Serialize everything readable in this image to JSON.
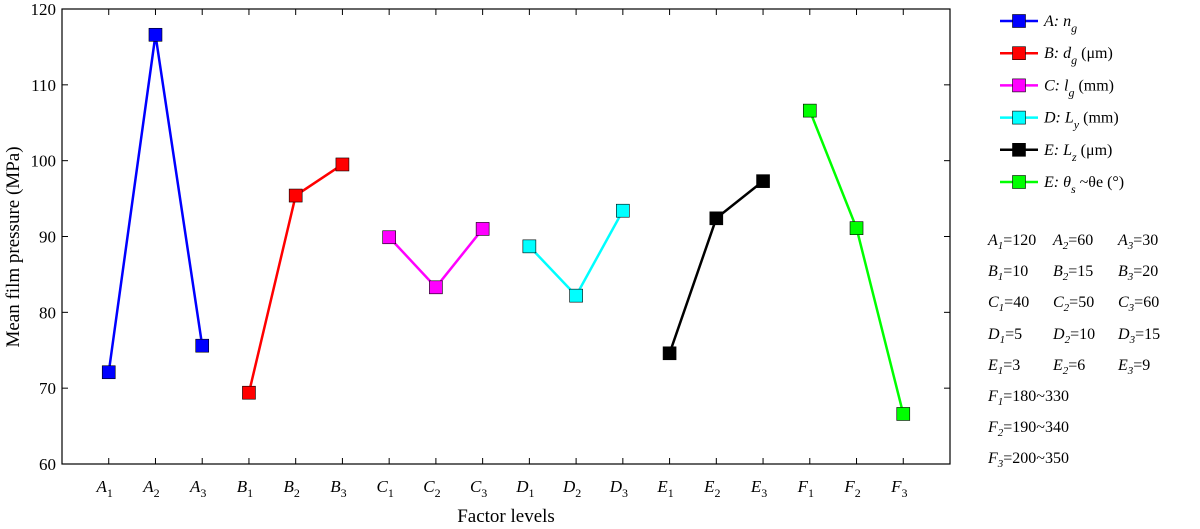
{
  "chart_data": {
    "type": "line",
    "xlabel": "Factor levels",
    "ylabel": "Mean film pressure (MPa)",
    "ylim": [
      60,
      120
    ],
    "yticks": [
      60,
      70,
      80,
      90,
      100,
      110,
      120
    ],
    "grid": false,
    "legend_position": "right",
    "categories": [
      "A1",
      "A2",
      "A3",
      "B1",
      "B2",
      "B3",
      "C1",
      "C2",
      "C3",
      "D1",
      "D2",
      "D3",
      "E1",
      "E2",
      "E3",
      "F1",
      "F2",
      "F3"
    ],
    "series": [
      {
        "name": "A: ng",
        "color": "#0000ff",
        "points": [
          {
            "x": "A1",
            "y": 72.1
          },
          {
            "x": "A2",
            "y": 116.6
          },
          {
            "x": "A3",
            "y": 75.6
          }
        ]
      },
      {
        "name": "B: dg (μm)",
        "color": "#ff0000",
        "points": [
          {
            "x": "B1",
            "y": 69.4
          },
          {
            "x": "B2",
            "y": 95.4
          },
          {
            "x": "B3",
            "y": 99.5
          }
        ]
      },
      {
        "name": "C: lg (mm)",
        "color": "#ff00ff",
        "points": [
          {
            "x": "C1",
            "y": 89.9
          },
          {
            "x": "C2",
            "y": 83.3
          },
          {
            "x": "C3",
            "y": 91.0
          }
        ]
      },
      {
        "name": "D: Ly (mm)",
        "color": "#00ffff",
        "points": [
          {
            "x": "D1",
            "y": 88.7
          },
          {
            "x": "D2",
            "y": 82.2
          },
          {
            "x": "D3",
            "y": 93.4
          }
        ]
      },
      {
        "name": "E: Lz (μm)",
        "color": "#000000",
        "points": [
          {
            "x": "E1",
            "y": 74.6
          },
          {
            "x": "E2",
            "y": 92.4
          },
          {
            "x": "E3",
            "y": 97.3
          }
        ]
      },
      {
        "name": "E: θs~θe (°)",
        "color": "#00ff00",
        "points": [
          {
            "x": "F1",
            "y": 106.6
          },
          {
            "x": "F2",
            "y": 91.1
          },
          {
            "x": "F3",
            "y": 66.6
          }
        ]
      }
    ],
    "legend": [
      {
        "letter": "A",
        "sym": "n",
        "sub": "g",
        "unit": ""
      },
      {
        "letter": "B",
        "sym": "d",
        "sub": "g",
        "unit": " (μm)"
      },
      {
        "letter": "C",
        "sym": "l",
        "sub": "g",
        "unit": " (mm)"
      },
      {
        "letter": "D",
        "sym": "L",
        "sub": "y",
        "unit": " (mm)"
      },
      {
        "letter": "E",
        "sym": "L",
        "sub": "z",
        "unit": " (μm)"
      },
      {
        "letter": "E",
        "sym": "θ",
        "sub": "s",
        "unit": " ~θe (°)"
      }
    ]
  },
  "factor_notes": [
    [
      {
        "sym": "A",
        "sub": "1",
        "val": "=120"
      },
      {
        "sym": "A",
        "sub": "2",
        "val": "=60"
      },
      {
        "sym": "A",
        "sub": "3",
        "val": "=30"
      }
    ],
    [
      {
        "sym": "B",
        "sub": "1",
        "val": "=10"
      },
      {
        "sym": "B",
        "sub": "2",
        "val": "=15"
      },
      {
        "sym": "B",
        "sub": "3",
        "val": "=20"
      }
    ],
    [
      {
        "sym": "C",
        "sub": "1",
        "val": "=40"
      },
      {
        "sym": "C",
        "sub": "2",
        "val": "=50"
      },
      {
        "sym": "C",
        "sub": "3",
        "val": "=60"
      }
    ],
    [
      {
        "sym": "D",
        "sub": "1",
        "val": "=5"
      },
      {
        "sym": "D",
        "sub": "2",
        "val": "=10"
      },
      {
        "sym": "D",
        "sub": "3",
        "val": "=15"
      }
    ],
    [
      {
        "sym": "E",
        "sub": "1",
        "val": "=3"
      },
      {
        "sym": "E",
        "sub": "2",
        "val": "=6"
      },
      {
        "sym": "E",
        "sub": "3",
        "val": "=9"
      }
    ],
    [
      {
        "sym": "F",
        "sub": "1",
        "val": "=180~330"
      }
    ],
    [
      {
        "sym": "F",
        "sub": "2",
        "val": "=190~340"
      }
    ],
    [
      {
        "sym": "F",
        "sub": "3",
        "val": "=200~350"
      }
    ]
  ]
}
